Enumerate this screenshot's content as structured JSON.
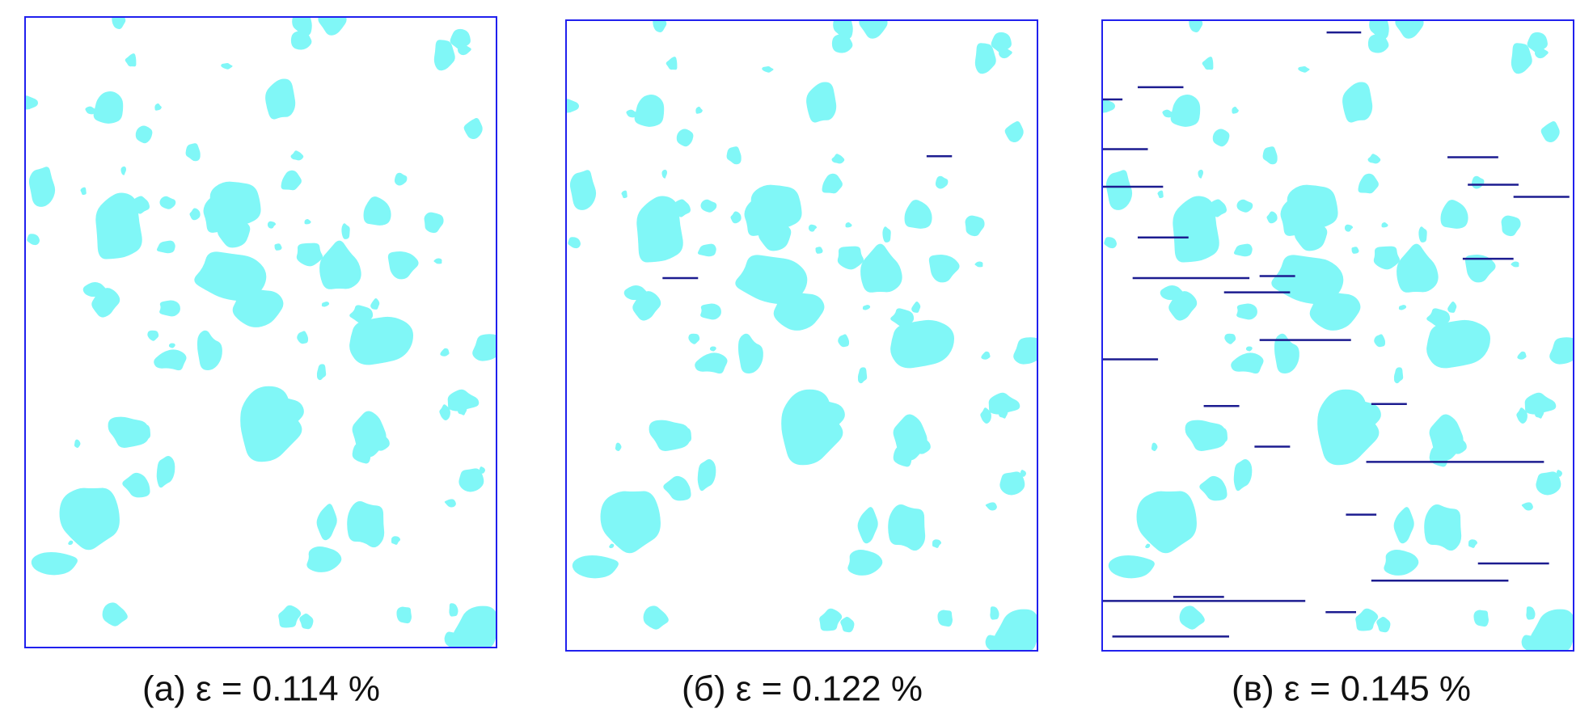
{
  "panels": [
    {
      "caption": "(а) ε = 0.114 %"
    },
    {
      "caption": "(б) ε = 0.122 %"
    },
    {
      "caption": "(в) ε = 0.145 %"
    }
  ]
}
